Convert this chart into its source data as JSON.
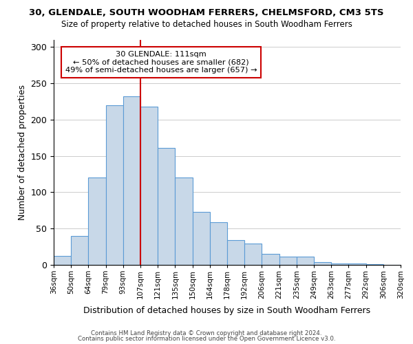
{
  "title": "30, GLENDALE, SOUTH WOODHAM FERRERS, CHELMSFORD, CM3 5TS",
  "subtitle": "Size of property relative to detached houses in South Woodham Ferrers",
  "xlabel": "Distribution of detached houses by size in South Woodham Ferrers",
  "ylabel": "Number of detached properties",
  "bar_labels": [
    "36sqm",
    "50sqm",
    "64sqm",
    "79sqm",
    "93sqm",
    "107sqm",
    "121sqm",
    "135sqm",
    "150sqm",
    "164sqm",
    "178sqm",
    "192sqm",
    "206sqm",
    "221sqm",
    "235sqm",
    "249sqm",
    "263sqm",
    "277sqm",
    "292sqm",
    "306sqm",
    "320sqm"
  ],
  "bar_heights": [
    12,
    40,
    120,
    220,
    232,
    218,
    161,
    120,
    73,
    59,
    34,
    29,
    15,
    11,
    11,
    4,
    2,
    2,
    1,
    0
  ],
  "bar_color": "#c8d8e8",
  "bar_edge_color": "#5b9bd5",
  "vline_x": 5,
  "vline_color": "#cc0000",
  "annotation_title": "30 GLENDALE: 111sqm",
  "annotation_line1": "← 50% of detached houses are smaller (682)",
  "annotation_line2": "49% of semi-detached houses are larger (657) →",
  "annotation_box_color": "#ffffff",
  "annotation_box_edge": "#cc0000",
  "ylim": [
    0,
    310
  ],
  "yticks": [
    0,
    50,
    100,
    150,
    200,
    250,
    300
  ],
  "footnote1": "Contains HM Land Registry data © Crown copyright and database right 2024.",
  "footnote2": "Contains public sector information licensed under the Open Government Licence v3.0."
}
